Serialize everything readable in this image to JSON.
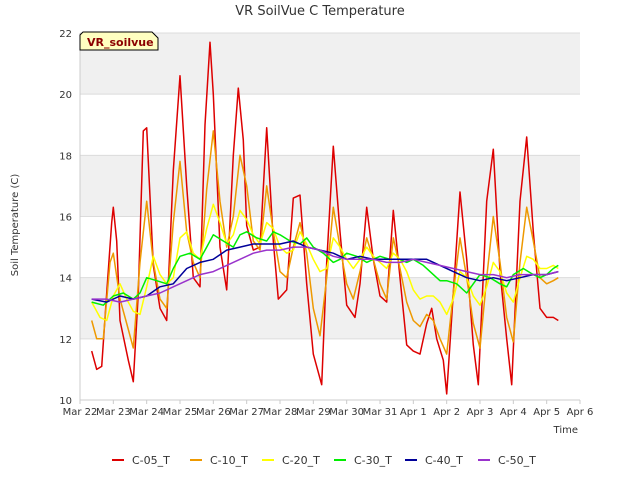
{
  "chart_data": {
    "type": "line",
    "title": "VR SoilVue C Temperature",
    "xlabel": "Time",
    "ylabel": "Soil Temperature (C)",
    "ylim": [
      10,
      22
    ],
    "yticks": [
      10,
      12,
      14,
      16,
      18,
      20,
      22
    ],
    "xlim": [
      0,
      15
    ],
    "xticks": [
      0,
      1,
      2,
      3,
      4,
      5,
      6,
      7,
      8,
      9,
      10,
      11,
      12,
      13,
      14,
      15
    ],
    "xticklabels": [
      "Mar 22",
      "Mar 23",
      "Mar 24",
      "Mar 25",
      "Mar 26",
      "Mar 27",
      "Mar 28",
      "Mar 29",
      "Mar 30",
      "Mar 31",
      "Apr 1",
      "Apr 2",
      "Apr 3",
      "Apr 4",
      "Apr 5",
      "Apr 6"
    ],
    "badge": "VR_soilvue",
    "grid": "horizontal bands",
    "legend_position": "bottom",
    "series": [
      {
        "name": "C-05_T",
        "color": "#dd0000",
        "x": [
          0.35,
          0.5,
          0.65,
          0.8,
          0.95,
          1.0,
          1.1,
          1.2,
          1.45,
          1.6,
          1.75,
          1.9,
          2.0,
          2.2,
          2.4,
          2.6,
          2.8,
          3.0,
          3.2,
          3.4,
          3.6,
          3.75,
          3.9,
          4.0,
          4.2,
          4.4,
          4.6,
          4.75,
          4.9,
          5.0,
          5.2,
          5.4,
          5.6,
          5.8,
          5.95,
          6.2,
          6.4,
          6.6,
          6.8,
          7.0,
          7.25,
          7.4,
          7.6,
          7.8,
          8.0,
          8.25,
          8.4,
          8.6,
          8.8,
          9.0,
          9.2,
          9.4,
          9.6,
          9.8,
          10.0,
          10.2,
          10.4,
          10.55,
          10.7,
          10.9,
          11.0,
          11.2,
          11.4,
          11.6,
          11.8,
          11.95,
          12.2,
          12.4,
          12.6,
          12.8,
          12.95,
          13.2,
          13.4,
          13.6,
          13.8,
          14.0,
          14.2,
          14.35
        ],
        "y": [
          11.6,
          11.0,
          11.1,
          13.5,
          15.8,
          16.3,
          15.2,
          12.6,
          11.3,
          10.6,
          13.5,
          18.8,
          18.9,
          14.4,
          13.0,
          12.6,
          17.5,
          20.6,
          17.0,
          14.0,
          13.7,
          19.0,
          21.7,
          20.0,
          15.0,
          13.6,
          18.0,
          20.2,
          18.5,
          15.7,
          14.9,
          15.0,
          18.9,
          15.2,
          13.3,
          13.6,
          16.6,
          16.7,
          13.8,
          11.5,
          10.5,
          14.5,
          18.3,
          15.5,
          13.1,
          12.7,
          13.8,
          16.3,
          14.6,
          13.4,
          13.2,
          16.2,
          14.0,
          11.8,
          11.6,
          11.5,
          12.5,
          13.0,
          12.0,
          11.3,
          10.2,
          13.5,
          16.8,
          14.6,
          11.8,
          10.5,
          16.5,
          18.2,
          14.2,
          12.0,
          10.5,
          16.5,
          18.6,
          15.5,
          13.0,
          12.7,
          12.7,
          12.6
        ]
      },
      {
        "name": "C-10_T",
        "color": "#ee9900",
        "x": [
          0.35,
          0.5,
          0.7,
          0.9,
          1.0,
          1.2,
          1.4,
          1.6,
          1.8,
          2.0,
          2.2,
          2.4,
          2.6,
          2.8,
          3.0,
          3.2,
          3.4,
          3.6,
          3.8,
          4.0,
          4.2,
          4.4,
          4.6,
          4.8,
          5.0,
          5.2,
          5.4,
          5.6,
          5.8,
          6.0,
          6.2,
          6.4,
          6.6,
          6.8,
          7.0,
          7.2,
          7.4,
          7.6,
          7.8,
          8.0,
          8.2,
          8.4,
          8.6,
          8.8,
          9.0,
          9.2,
          9.4,
          9.6,
          9.8,
          10.0,
          10.2,
          10.4,
          10.6,
          10.8,
          11.0,
          11.2,
          11.4,
          11.6,
          11.8,
          12.0,
          12.2,
          12.4,
          12.6,
          12.8,
          13.0,
          13.2,
          13.4,
          13.6,
          13.8,
          14.0,
          14.2,
          14.35
        ],
        "y": [
          12.6,
          12.0,
          12.0,
          14.5,
          14.8,
          13.3,
          12.5,
          11.7,
          14.5,
          16.5,
          14.5,
          13.3,
          13.0,
          15.8,
          17.8,
          15.5,
          14.5,
          14.0,
          16.9,
          18.8,
          16.5,
          15.0,
          16.0,
          18.0,
          17.0,
          15.2,
          14.9,
          17.0,
          15.5,
          14.2,
          14.0,
          15.0,
          15.8,
          14.8,
          13.0,
          12.1,
          14.0,
          16.3,
          15.0,
          13.8,
          13.3,
          14.2,
          15.3,
          14.6,
          13.8,
          13.3,
          15.3,
          14.3,
          13.2,
          12.6,
          12.4,
          12.8,
          12.6,
          12.0,
          11.5,
          13.5,
          15.3,
          14.0,
          12.5,
          11.7,
          14.0,
          16.0,
          14.5,
          12.7,
          11.9,
          14.5,
          16.3,
          15.2,
          14.0,
          13.8,
          13.9,
          14.0
        ]
      },
      {
        "name": "C-20_T",
        "color": "#ffff00",
        "x": [
          0.35,
          0.6,
          0.8,
          1.0,
          1.2,
          1.4,
          1.6,
          1.8,
          2.0,
          2.2,
          2.4,
          2.6,
          2.8,
          3.0,
          3.2,
          3.4,
          3.6,
          3.8,
          4.0,
          4.2,
          4.4,
          4.6,
          4.8,
          5.0,
          5.2,
          5.4,
          5.6,
          5.8,
          6.0,
          6.2,
          6.4,
          6.6,
          6.8,
          7.0,
          7.2,
          7.4,
          7.6,
          7.8,
          8.0,
          8.2,
          8.4,
          8.6,
          8.8,
          9.0,
          9.2,
          9.4,
          9.6,
          9.8,
          10.0,
          10.2,
          10.4,
          10.6,
          10.8,
          11.0,
          11.2,
          11.4,
          11.6,
          11.8,
          12.0,
          12.2,
          12.4,
          12.6,
          12.8,
          13.0,
          13.2,
          13.4,
          13.6,
          13.8,
          14.0,
          14.2,
          14.35
        ],
        "y": [
          13.2,
          12.7,
          12.6,
          13.4,
          13.8,
          13.3,
          12.9,
          12.8,
          13.7,
          14.7,
          14.1,
          13.8,
          14.0,
          15.3,
          15.5,
          14.8,
          14.6,
          15.6,
          16.4,
          15.8,
          15.1,
          15.4,
          16.2,
          15.9,
          15.4,
          15.1,
          15.8,
          15.6,
          15.0,
          14.8,
          14.9,
          15.5,
          15.1,
          14.6,
          14.2,
          14.3,
          15.3,
          15.0,
          14.6,
          14.3,
          14.6,
          15.0,
          14.7,
          14.5,
          14.3,
          14.8,
          14.6,
          14.2,
          13.6,
          13.3,
          13.4,
          13.4,
          13.2,
          12.8,
          13.3,
          14.2,
          14.0,
          13.4,
          13.1,
          13.7,
          14.5,
          14.2,
          13.5,
          13.2,
          14.0,
          14.7,
          14.6,
          14.3,
          14.3,
          14.4,
          14.3
        ]
      },
      {
        "name": "C-30_T",
        "color": "#00ee00",
        "x": [
          0.35,
          0.7,
          1.0,
          1.3,
          1.6,
          1.8,
          2.0,
          2.3,
          2.6,
          2.8,
          3.0,
          3.3,
          3.6,
          3.8,
          4.0,
          4.3,
          4.6,
          4.8,
          5.0,
          5.3,
          5.6,
          5.8,
          6.0,
          6.3,
          6.6,
          6.8,
          7.0,
          7.3,
          7.6,
          7.8,
          8.0,
          8.3,
          8.6,
          8.8,
          9.0,
          9.3,
          9.6,
          9.8,
          10.0,
          10.3,
          10.6,
          10.8,
          11.0,
          11.3,
          11.6,
          11.8,
          12.0,
          12.3,
          12.6,
          12.8,
          13.0,
          13.3,
          13.6,
          13.8,
          14.0,
          14.2,
          14.35
        ],
        "y": [
          13.2,
          13.1,
          13.4,
          13.5,
          13.3,
          13.5,
          14.0,
          13.9,
          13.8,
          14.3,
          14.7,
          14.8,
          14.6,
          15.0,
          15.4,
          15.2,
          15.0,
          15.4,
          15.5,
          15.3,
          15.2,
          15.5,
          15.4,
          15.2,
          15.1,
          15.3,
          15.0,
          14.8,
          14.5,
          14.6,
          14.8,
          14.7,
          14.5,
          14.6,
          14.7,
          14.6,
          14.6,
          14.5,
          14.6,
          14.4,
          14.1,
          13.9,
          13.9,
          13.8,
          13.5,
          13.8,
          14.1,
          14.0,
          13.8,
          13.7,
          14.1,
          14.3,
          14.1,
          14.0,
          14.1,
          14.3,
          14.4
        ]
      },
      {
        "name": "C-40_T",
        "color": "#000099",
        "x": [
          0.35,
          0.8,
          1.2,
          1.6,
          2.0,
          2.4,
          2.8,
          3.2,
          3.6,
          4.0,
          4.4,
          4.8,
          5.2,
          5.6,
          6.0,
          6.4,
          6.8,
          7.2,
          7.6,
          8.0,
          8.4,
          8.8,
          9.2,
          9.6,
          10.0,
          10.4,
          10.8,
          11.2,
          11.6,
          12.0,
          12.4,
          12.8,
          13.2,
          13.6,
          14.0,
          14.35
        ],
        "y": [
          13.3,
          13.2,
          13.4,
          13.3,
          13.4,
          13.7,
          13.8,
          14.3,
          14.5,
          14.6,
          14.9,
          15.0,
          15.1,
          15.1,
          15.1,
          15.2,
          15.0,
          14.9,
          14.8,
          14.6,
          14.7,
          14.6,
          14.6,
          14.6,
          14.6,
          14.6,
          14.4,
          14.2,
          14.0,
          13.9,
          14.0,
          13.9,
          14.0,
          14.1,
          14.1,
          14.2
        ]
      },
      {
        "name": "C-50_T",
        "color": "#9933cc",
        "x": [
          0.35,
          0.8,
          1.2,
          1.6,
          2.0,
          2.4,
          2.8,
          3.2,
          3.6,
          4.0,
          4.4,
          4.8,
          5.2,
          5.6,
          6.0,
          6.4,
          6.8,
          7.2,
          7.6,
          8.0,
          8.4,
          8.8,
          9.2,
          9.6,
          10.0,
          10.4,
          10.8,
          11.2,
          11.6,
          12.0,
          12.4,
          12.8,
          13.2,
          13.6,
          14.0,
          14.35
        ],
        "y": [
          13.3,
          13.3,
          13.2,
          13.3,
          13.4,
          13.5,
          13.7,
          13.9,
          14.1,
          14.2,
          14.4,
          14.6,
          14.8,
          14.9,
          14.9,
          15.0,
          15.0,
          14.9,
          14.7,
          14.6,
          14.6,
          14.6,
          14.5,
          14.5,
          14.6,
          14.5,
          14.4,
          14.3,
          14.2,
          14.1,
          14.1,
          14.0,
          14.1,
          14.1,
          14.1,
          14.2
        ]
      }
    ]
  }
}
